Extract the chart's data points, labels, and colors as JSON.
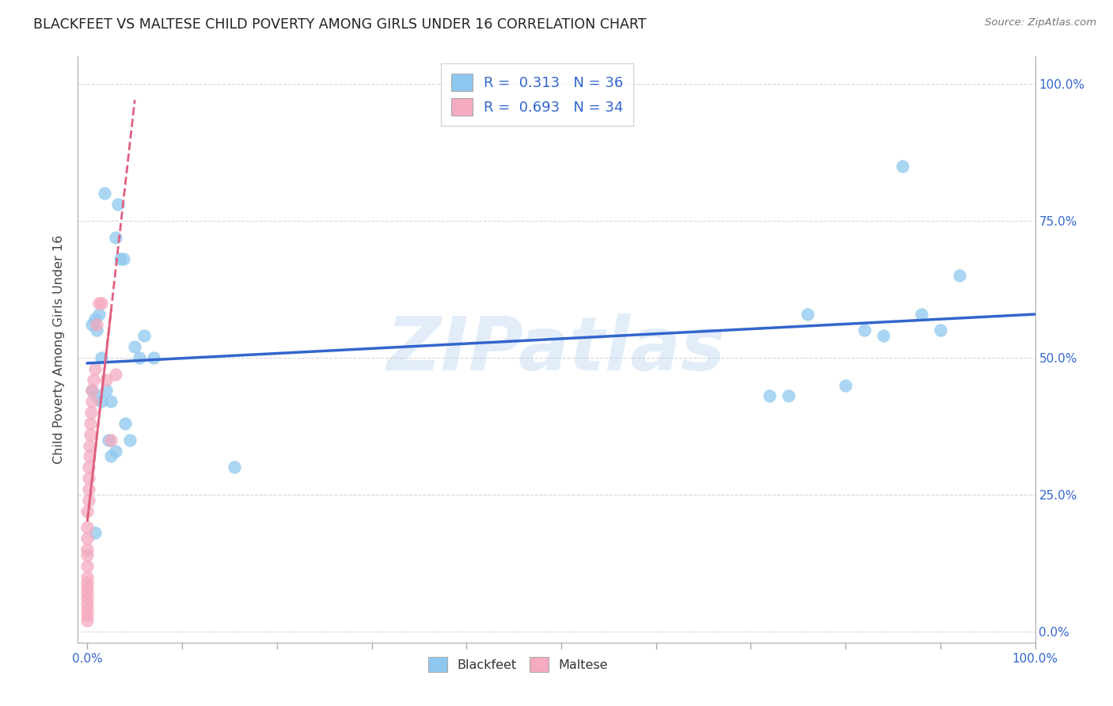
{
  "title": "BLACKFEET VS MALTESE CHILD POVERTY AMONG GIRLS UNDER 16 CORRELATION CHART",
  "source": "Source: ZipAtlas.com",
  "ylabel": "Child Poverty Among Girls Under 16",
  "watermark": "ZIPatlas",
  "blackfeet_color": "#8EC8F0",
  "maltese_color": "#F5AABF",
  "trend_blue": "#3366CC",
  "trend_pink": "#E06080",
  "blackfeet_x": [
    0.005,
    0.005,
    0.008,
    0.01,
    0.01,
    0.012,
    0.015,
    0.015,
    0.018,
    0.02,
    0.022,
    0.025,
    0.025,
    0.03,
    0.03,
    0.032,
    0.035,
    0.038,
    0.04,
    0.045,
    0.05,
    0.055,
    0.06,
    0.07,
    0.72,
    0.74,
    0.76,
    0.8,
    0.82,
    0.84,
    0.86,
    0.88,
    0.9,
    0.92,
    0.155,
    0.008
  ],
  "blackfeet_y": [
    0.56,
    0.44,
    0.57,
    0.55,
    0.43,
    0.58,
    0.5,
    0.42,
    0.8,
    0.44,
    0.35,
    0.32,
    0.42,
    0.33,
    0.72,
    0.78,
    0.68,
    0.68,
    0.38,
    0.35,
    0.52,
    0.5,
    0.54,
    0.5,
    0.43,
    0.43,
    0.58,
    0.45,
    0.55,
    0.54,
    0.85,
    0.58,
    0.55,
    0.65,
    0.3,
    0.18
  ],
  "maltese_x": [
    0.0,
    0.0,
    0.0,
    0.0,
    0.0,
    0.0,
    0.0,
    0.0,
    0.0,
    0.0,
    0.0,
    0.0,
    0.0,
    0.0,
    0.0,
    0.001,
    0.001,
    0.001,
    0.001,
    0.002,
    0.002,
    0.003,
    0.003,
    0.004,
    0.005,
    0.005,
    0.006,
    0.008,
    0.01,
    0.012,
    0.015,
    0.02,
    0.025,
    0.03
  ],
  "maltese_y": [
    0.02,
    0.03,
    0.04,
    0.05,
    0.06,
    0.07,
    0.08,
    0.09,
    0.1,
    0.12,
    0.14,
    0.15,
    0.17,
    0.19,
    0.22,
    0.24,
    0.26,
    0.28,
    0.3,
    0.32,
    0.34,
    0.36,
    0.38,
    0.4,
    0.42,
    0.44,
    0.46,
    0.48,
    0.56,
    0.6,
    0.6,
    0.46,
    0.35,
    0.47
  ],
  "xlim": [
    -0.01,
    1.0
  ],
  "ylim": [
    -0.02,
    1.05
  ],
  "xticks": [
    0.0,
    0.1,
    0.2,
    0.3,
    0.4,
    0.5,
    0.6,
    0.7,
    0.8,
    0.9,
    1.0
  ],
  "yticks": [
    0.0,
    0.25,
    0.5,
    0.75,
    1.0
  ],
  "right_ytick_labels": [
    "0.0%",
    "25.0%",
    "50.0%",
    "75.0%",
    "100.0%"
  ]
}
